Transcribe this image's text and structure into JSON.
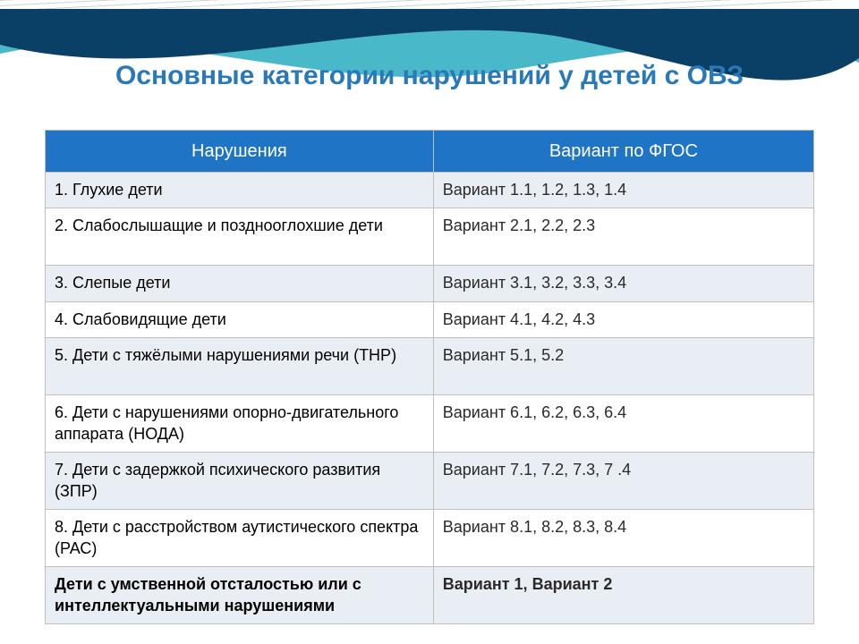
{
  "title": {
    "text": "Основные категории нарушений у детей с ОВЗ",
    "color": "#2b78b9",
    "fontsize": 30
  },
  "decor": {
    "wave1_fill": "#3fb4c6",
    "wave2_fill": "#0a3f66",
    "line_color": "#c9d6d3"
  },
  "table": {
    "header_bg": "#1f74c6",
    "header_fg": "#ffffff",
    "band_bg": "#e9eef4",
    "plain_bg": "#ffffff",
    "border": "#bfbfbf",
    "fontsize": 18,
    "columns": [
      "Нарушения",
      "Вариант по ФГОС"
    ],
    "col_widths_pct": [
      50.5,
      49.5
    ],
    "rows": [
      {
        "cat": "1.  Глухие дети",
        "var": "Вариант 1.1,   1.2,  1.3,   1.4",
        "band": true,
        "tall": false
      },
      {
        "cat": "2. Слабослышащие и позднооглохшие дети",
        "var": "Вариант  2.1,   2.2,   2.3",
        "band": false,
        "tall": true
      },
      {
        "cat": "3. Слепые дети",
        "var": "Вариант  3.1,   3.2,   3.3,   3.4",
        "band": true,
        "tall": false
      },
      {
        "cat": "4. Слабовидящие дети",
        "var": "Вариант  4.1,    4.2,   4.3",
        "band": false,
        "tall": false
      },
      {
        "cat": "5. Дети с тяжёлыми нарушениями речи (ТНР)",
        "var": "Вариант  5.1,    5.2",
        "band": true,
        "tall": true
      },
      {
        "cat": "6. Дети с нарушениями опорно-двигательного аппарата (НОДА)",
        "var": "Вариант  6.1,   6.2,   6.3,   6.4",
        "band": false,
        "tall": true
      },
      {
        "cat": "7. Дети с задержкой психического развития (ЗПР)",
        "var": "Вариант  7.1,   7.2,   7.3,  7 .4",
        "band": true,
        "tall": true
      },
      {
        "cat": "8. Дети с расстройством аутистического спектра (РАС)",
        "var": "Вариант  8.1,   8.2,   8.3,   8.4",
        "band": false,
        "tall": true
      },
      {
        "cat": "Дети с умственной отсталостью или с интеллектуальными нарушениями",
        "var": "Вариант 1, Вариант 2",
        "band": true,
        "tall": true,
        "bold": true
      }
    ]
  }
}
